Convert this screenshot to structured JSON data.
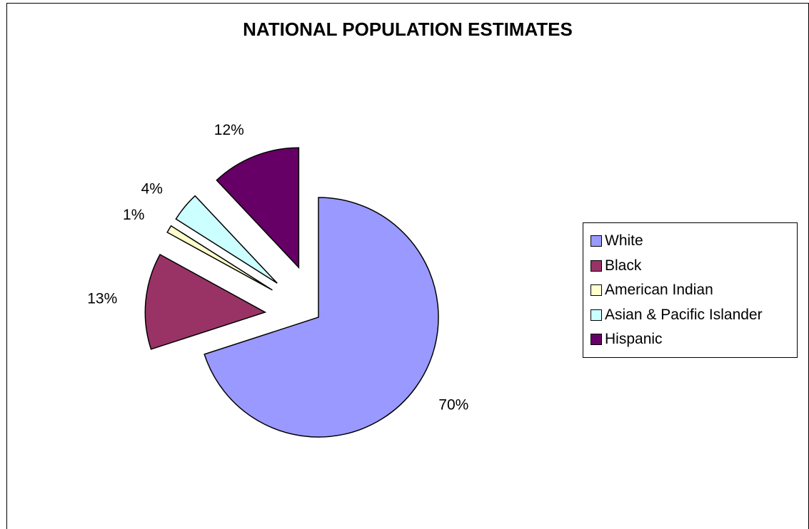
{
  "chart_data": {
    "type": "pie",
    "title": "NATIONAL POPULATION ESTIMATES",
    "categories": [
      "White",
      "Black",
      "American Indian",
      "Asian & Pacific Islander",
      "Hispanic"
    ],
    "values": [
      70,
      13,
      1,
      4,
      12
    ],
    "data_labels": [
      "70%",
      "13%",
      "1%",
      "4%",
      "12%"
    ],
    "colors": [
      "#9999ff",
      "#993366",
      "#ffffcc",
      "#ccffff",
      "#660066"
    ],
    "exploded": true,
    "legend_position": "right"
  }
}
